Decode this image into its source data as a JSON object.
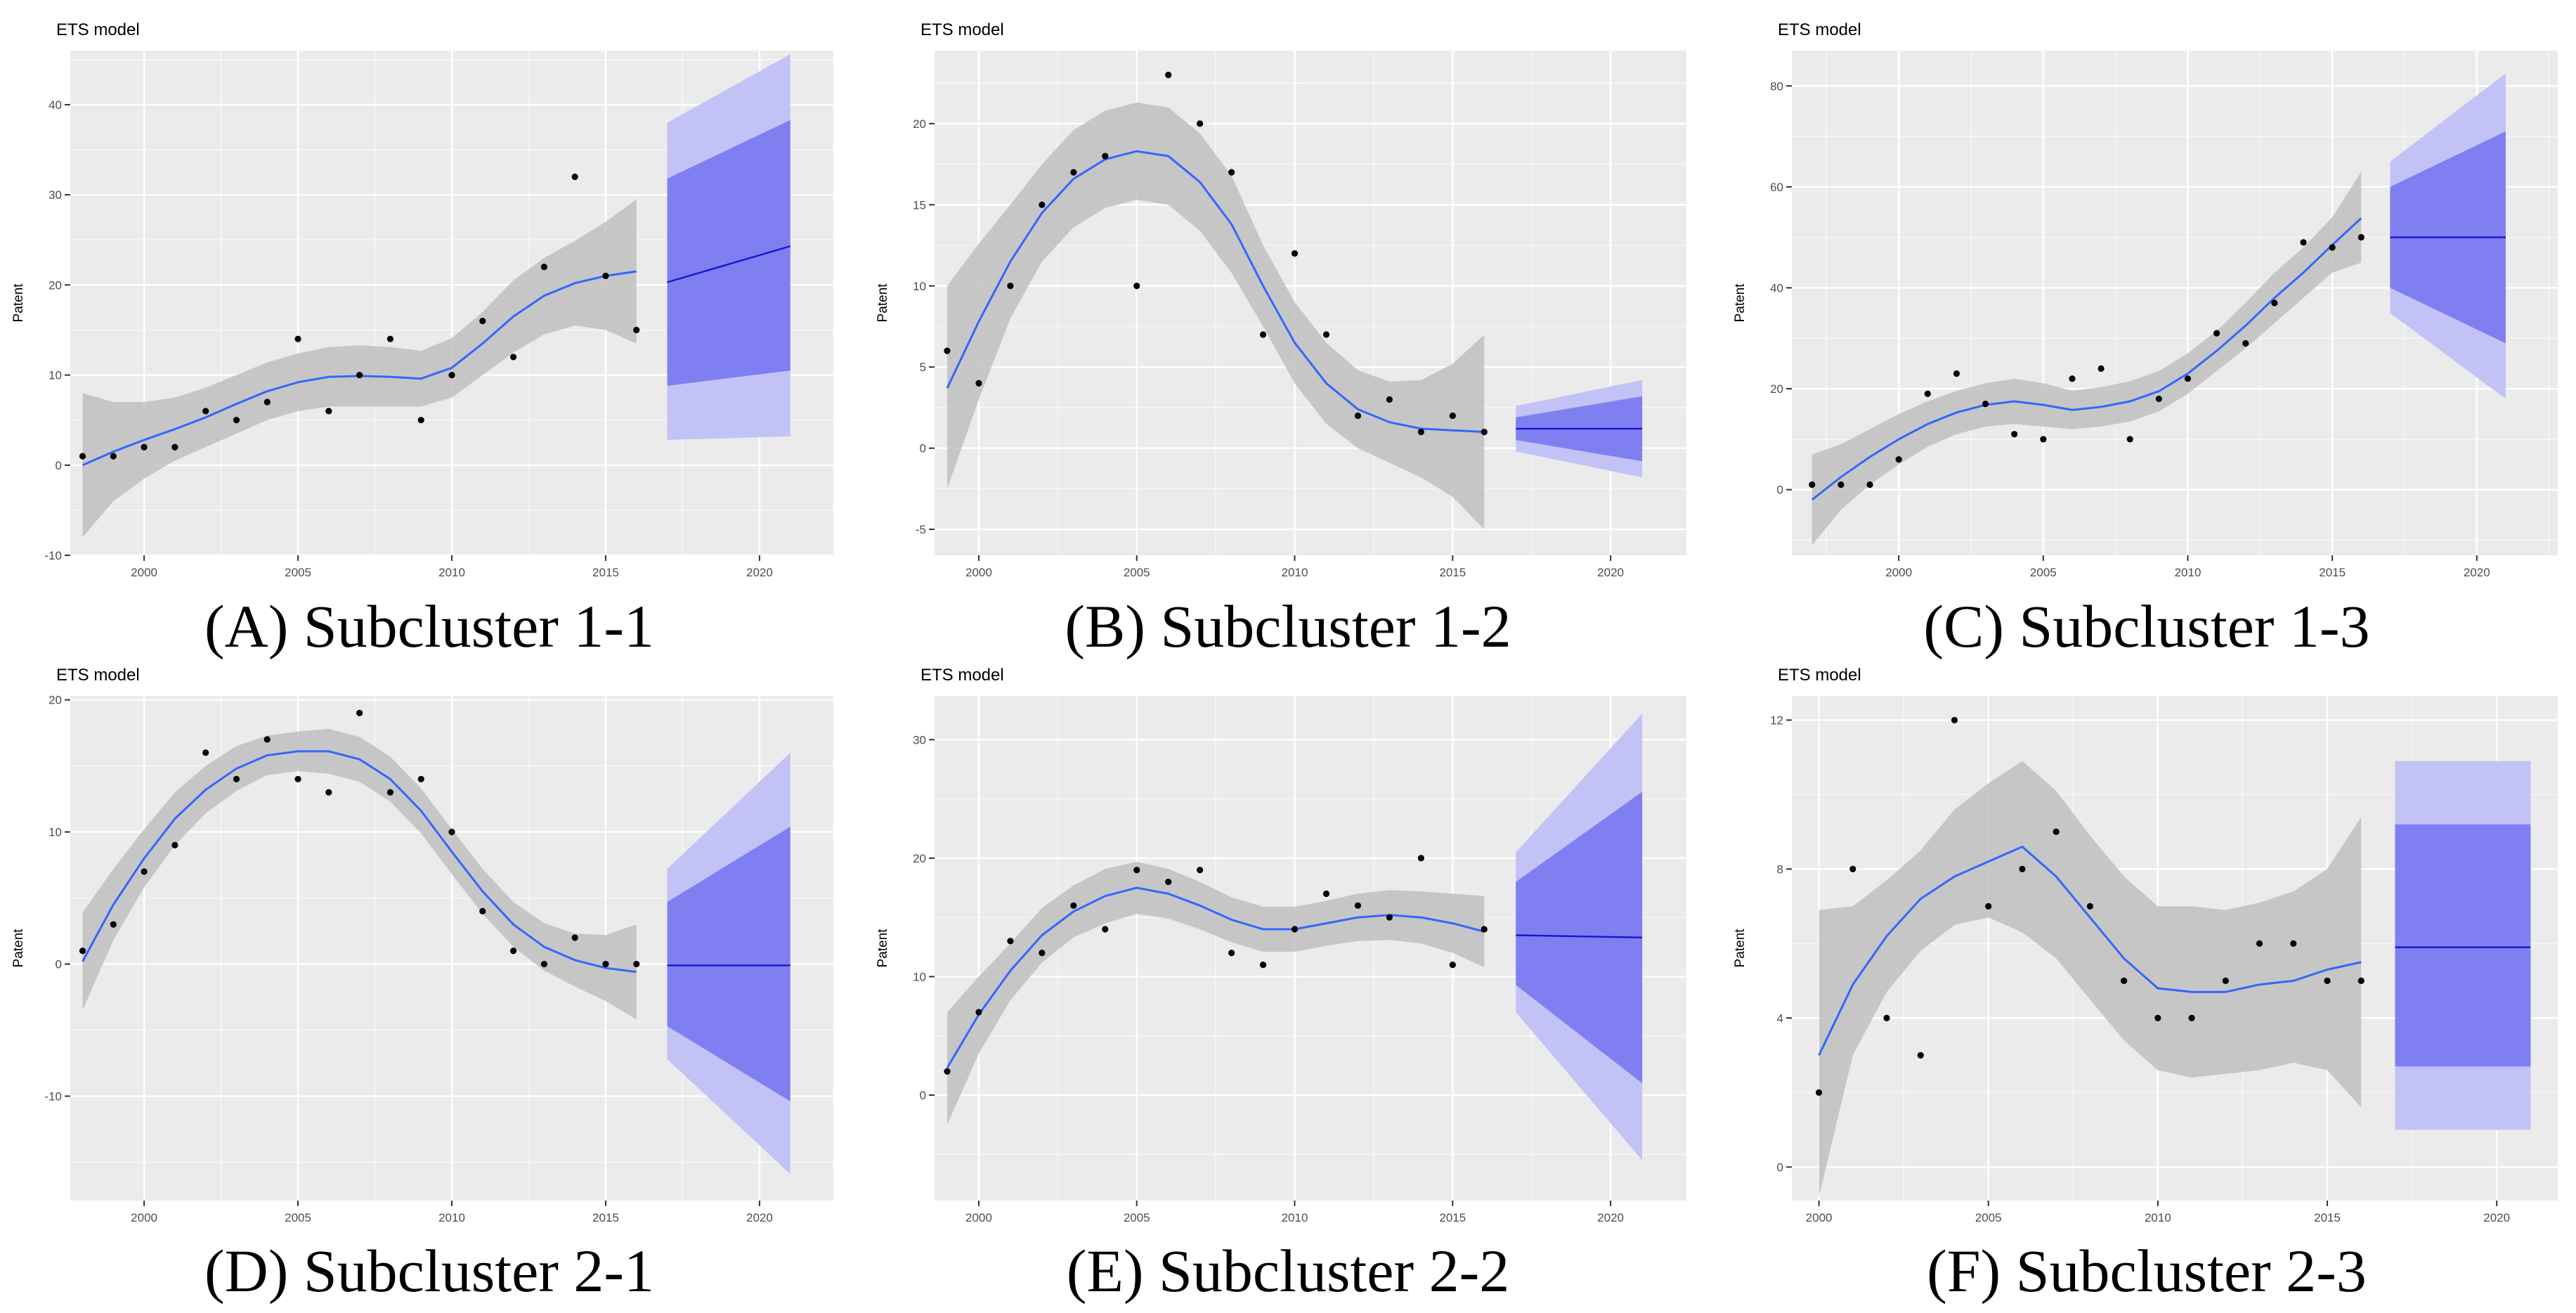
{
  "figure": {
    "panel_titles": [
      "ETS model",
      "ETS model",
      "ETS model",
      "ETS model",
      "ETS model",
      "ETS model"
    ],
    "captions": [
      "(A) Subcluster 1-1",
      "(B) Subcluster 1-2",
      "(C) Subcluster 1-3",
      "(D) Subcluster 2-1",
      "(E) Subcluster 2-2",
      "(F) Subcluster 2-3"
    ],
    "colors": {
      "panel_bg": "#ebebeb",
      "grid": "#ffffff",
      "ribbon": "#bfbfbf",
      "smooth": "#3366ff",
      "points": "#000000",
      "pi80": "#7f7ff2",
      "pi95": "#c2c2f7",
      "forecast_line": "#1515d9",
      "axis_text": "#4d4d4d"
    }
  },
  "chart_data": [
    {
      "type": "scatter",
      "title": "ETS model",
      "caption": "(A) Subcluster 1-1",
      "xlabel": "",
      "ylabel": "Patent",
      "xlim": [
        1997.6,
        2022.4
      ],
      "ylim": [
        -10,
        46
      ],
      "xticks": [
        2000,
        2005,
        2010,
        2015,
        2020
      ],
      "yticks": [
        -10,
        0,
        10,
        20,
        30,
        40
      ],
      "points": {
        "x": [
          1998,
          1999,
          2000,
          2001,
          2002,
          2003,
          2004,
          2005,
          2006,
          2007,
          2008,
          2009,
          2010,
          2011,
          2012,
          2013,
          2014,
          2015,
          2016
        ],
        "y": [
          1,
          1,
          2,
          2,
          6,
          5,
          7,
          14,
          6,
          10,
          14,
          5,
          10,
          16,
          12,
          22,
          32,
          21,
          15
        ]
      },
      "smooth": {
        "x": [
          1998,
          1999,
          2000,
          2001,
          2002,
          2003,
          2004,
          2005,
          2006,
          2007,
          2008,
          2009,
          2010,
          2011,
          2012,
          2013,
          2014,
          2015,
          2016
        ],
        "y": [
          0,
          1.5,
          2.8,
          4,
          5.3,
          6.8,
          8.2,
          9.2,
          9.8,
          9.9,
          9.8,
          9.6,
          10.8,
          13.5,
          16.5,
          18.8,
          20.2,
          21,
          21.5
        ],
        "lower": [
          -8,
          -4,
          -1.5,
          0.5,
          2,
          3.5,
          5,
          6,
          6.5,
          6.5,
          6.5,
          6.5,
          7.5,
          10,
          12.5,
          14.5,
          15.5,
          15,
          13.5
        ],
        "upper": [
          8,
          7,
          7,
          7.5,
          8.6,
          10,
          11.4,
          12.4,
          13.1,
          13.3,
          13.1,
          12.7,
          14.1,
          17,
          20.5,
          23,
          24.9,
          27,
          29.5
        ]
      },
      "forecast": {
        "x": [
          2017,
          2021
        ],
        "mean": [
          20.3,
          24.3
        ],
        "lo80": [
          8.8,
          10.5
        ],
        "hi80": [
          31.8,
          38.3
        ],
        "lo95": [
          2.8,
          3.2
        ],
        "hi95": [
          38,
          45.6
        ]
      }
    },
    {
      "type": "scatter",
      "title": "ETS model",
      "caption": "(B) Subcluster 1-2",
      "xlabel": "",
      "ylabel": "Patent",
      "xlim": [
        1998.6,
        2022.4
      ],
      "ylim": [
        -6.6,
        24.5
      ],
      "xticks": [
        2000,
        2005,
        2010,
        2015,
        2020
      ],
      "yticks": [
        -5,
        0,
        5,
        10,
        15,
        20
      ],
      "points": {
        "x": [
          1999,
          2000,
          2001,
          2002,
          2003,
          2004,
          2005,
          2006,
          2007,
          2008,
          2009,
          2010,
          2011,
          2012,
          2013,
          2014,
          2015,
          2016
        ],
        "y": [
          6,
          4,
          10,
          15,
          17,
          18,
          10,
          23,
          20,
          17,
          7,
          12,
          7,
          2,
          3,
          1,
          2,
          1
        ]
      },
      "smooth": {
        "x": [
          1999,
          2000,
          2001,
          2002,
          2003,
          2004,
          2005,
          2006,
          2007,
          2008,
          2009,
          2010,
          2011,
          2012,
          2013,
          2014,
          2015,
          2016
        ],
        "y": [
          3.7,
          7.8,
          11.5,
          14.5,
          16.6,
          17.8,
          18.3,
          18,
          16.4,
          13.8,
          10,
          6.5,
          4,
          2.4,
          1.6,
          1.2,
          1.1,
          1
        ],
        "lower": [
          -2.5,
          3,
          8,
          11.5,
          13.6,
          14.8,
          15.3,
          15,
          13.4,
          10.8,
          7.5,
          4,
          1.5,
          0,
          -0.9,
          -1.8,
          -3,
          -5
        ],
        "upper": [
          10,
          12.6,
          15,
          17.5,
          19.6,
          20.8,
          21.3,
          21,
          19.4,
          16.8,
          12.5,
          9,
          6.5,
          4.8,
          4.1,
          4.2,
          5.2,
          7
        ]
      },
      "forecast": {
        "x": [
          2017,
          2021
        ],
        "mean": [
          1.2,
          1.2
        ],
        "lo80": [
          0.5,
          -0.8
        ],
        "hi80": [
          1.9,
          3.2
        ],
        "lo95": [
          -0.2,
          -1.8
        ],
        "hi95": [
          2.6,
          4.2
        ]
      }
    },
    {
      "type": "scatter",
      "title": "ETS model",
      "caption": "(C) Subcluster 1-3",
      "xlabel": "",
      "ylabel": "Patent",
      "xlim": [
        1996.3,
        2022.8
      ],
      "ylim": [
        -13,
        87
      ],
      "xticks": [
        2000,
        2005,
        2010,
        2015,
        2020
      ],
      "yticks": [
        0,
        20,
        40,
        60,
        80
      ],
      "points": {
        "x": [
          1997,
          1998,
          1999,
          2000,
          2001,
          2002,
          2003,
          2004,
          2005,
          2006,
          2007,
          2008,
          2009,
          2010,
          2011,
          2012,
          2013,
          2014,
          2015,
          2016
        ],
        "y": [
          1,
          1,
          1,
          6,
          19,
          23,
          17,
          11,
          10,
          22,
          24,
          10,
          18,
          22,
          31,
          29,
          37,
          49,
          48,
          50
        ]
      },
      "smooth": {
        "x": [
          1997,
          1998,
          1999,
          2000,
          2001,
          2002,
          2003,
          2004,
          2005,
          2006,
          2007,
          2008,
          2009,
          2010,
          2011,
          2012,
          2013,
          2014,
          2015,
          2016
        ],
        "y": [
          -2,
          2.5,
          6.5,
          10,
          13,
          15.3,
          16.8,
          17.5,
          16.8,
          15.8,
          16.4,
          17.5,
          19.5,
          23,
          27.5,
          32.5,
          38,
          43,
          48.5,
          53.8
        ],
        "lower": [
          -11,
          -4,
          1,
          5,
          8.5,
          11,
          12.5,
          13,
          12.5,
          12,
          12.5,
          13.5,
          15.5,
          19,
          23.5,
          28,
          33,
          38,
          43,
          45
        ],
        "upper": [
          7,
          9,
          12,
          15,
          17.5,
          19.6,
          21.1,
          22,
          21.1,
          19.6,
          20.3,
          21.5,
          23.5,
          27,
          31.5,
          37,
          43,
          48,
          54,
          63
        ]
      },
      "forecast": {
        "x": [
          2017,
          2021
        ],
        "mean": [
          50,
          50
        ],
        "lo80": [
          40,
          29
        ],
        "hi80": [
          60,
          71
        ],
        "lo95": [
          35,
          18
        ],
        "hi95": [
          65,
          82.5
        ]
      }
    },
    {
      "type": "scatter",
      "title": "ETS model",
      "caption": "(D) Subcluster 2-1",
      "xlabel": "",
      "ylabel": "Patent",
      "xlim": [
        1997.6,
        2022.4
      ],
      "ylim": [
        -17.9,
        20.3
      ],
      "xticks": [
        2000,
        2005,
        2010,
        2015,
        2020
      ],
      "yticks": [
        -10,
        0,
        10,
        20
      ],
      "points": {
        "x": [
          1998,
          1999,
          2000,
          2001,
          2002,
          2003,
          2004,
          2005,
          2006,
          2007,
          2008,
          2009,
          2010,
          2011,
          2012,
          2013,
          2014,
          2015,
          2016
        ],
        "y": [
          1,
          3,
          7,
          9,
          16,
          14,
          17,
          14,
          13,
          19,
          13,
          14,
          10,
          4,
          1,
          0,
          2,
          0,
          0
        ]
      },
      "smooth": {
        "x": [
          1998,
          1999,
          2000,
          2001,
          2002,
          2003,
          2004,
          2005,
          2006,
          2007,
          2008,
          2009,
          2010,
          2011,
          2012,
          2013,
          2014,
          2015,
          2016
        ],
        "y": [
          0.2,
          4.5,
          8,
          11,
          13.2,
          14.8,
          15.8,
          16.1,
          16.1,
          15.5,
          14,
          11.6,
          8.5,
          5.5,
          3,
          1.3,
          0.3,
          -0.3,
          -0.6
        ],
        "lower": [
          -3.5,
          1.8,
          5.8,
          9,
          11.4,
          13.1,
          14.3,
          14.6,
          14.4,
          13.8,
          12.3,
          9.9,
          6.8,
          3.8,
          1.3,
          -0.5,
          -1.7,
          -2.8,
          -4.2
        ],
        "upper": [
          3.9,
          7.2,
          10.2,
          13,
          15,
          16.5,
          17.3,
          17.6,
          17.8,
          17.2,
          15.7,
          13.3,
          10.2,
          7.2,
          4.7,
          3.1,
          2.3,
          2.2,
          3
        ]
      },
      "forecast": {
        "x": [
          2017,
          2021
        ],
        "mean": [
          -0.1,
          -0.1
        ],
        "lo80": [
          -4.7,
          -10.4
        ],
        "hi80": [
          4.7,
          10.4
        ],
        "lo95": [
          -7.2,
          -15.9
        ],
        "hi95": [
          7.2,
          16
        ]
      }
    },
    {
      "type": "scatter",
      "title": "ETS model",
      "caption": "(E) Subcluster 2-2",
      "xlabel": "",
      "ylabel": "Patent",
      "xlim": [
        1998.6,
        2022.4
      ],
      "ylim": [
        -8.9,
        33.7
      ],
      "xticks": [
        2000,
        2005,
        2010,
        2015,
        2020
      ],
      "yticks": [
        0,
        10,
        20,
        30
      ],
      "points": {
        "x": [
          1999,
          2000,
          2001,
          2002,
          2003,
          2004,
          2005,
          2006,
          2007,
          2008,
          2009,
          2010,
          2011,
          2012,
          2013,
          2014,
          2015,
          2016
        ],
        "y": [
          2,
          7,
          13,
          12,
          16,
          14,
          19,
          18,
          19,
          12,
          11,
          14,
          17,
          16,
          15,
          20,
          11,
          14
        ]
      },
      "smooth": {
        "x": [
          1999,
          2000,
          2001,
          2002,
          2003,
          2004,
          2005,
          2006,
          2007,
          2008,
          2009,
          2010,
          2011,
          2012,
          2013,
          2014,
          2015,
          2016
        ],
        "y": [
          2.3,
          6.8,
          10.5,
          13.5,
          15.5,
          16.8,
          17.5,
          17,
          16,
          14.8,
          14,
          14,
          14.5,
          15,
          15.2,
          15,
          14.5,
          13.8
        ],
        "lower": [
          -2.5,
          3.5,
          8,
          11.2,
          13.3,
          14.5,
          15.3,
          14.9,
          14,
          12.9,
          12.1,
          12.1,
          12.6,
          13,
          13.1,
          12.8,
          12,
          10.8
        ],
        "upper": [
          7,
          10,
          12.8,
          15.8,
          17.7,
          19.1,
          19.7,
          19.1,
          18,
          16.7,
          15.9,
          15.9,
          16.4,
          17,
          17.3,
          17.2,
          17,
          16.8
        ]
      },
      "forecast": {
        "x": [
          2017,
          2021
        ],
        "mean": [
          13.5,
          13.3
        ],
        "lo80": [
          9.3,
          1
        ],
        "hi80": [
          18,
          25.6
        ],
        "lo95": [
          7,
          -5.5
        ],
        "hi95": [
          20.5,
          32.2
        ]
      }
    },
    {
      "type": "scatter",
      "title": "ETS model",
      "caption": "(F) Subcluster 2-3",
      "xlabel": "",
      "ylabel": "Patent",
      "xlim": [
        1999.2,
        2021.8
      ],
      "ylim": [
        -0.9,
        12.65
      ],
      "xticks": [
        2000,
        2005,
        2010,
        2015,
        2020
      ],
      "yticks": [
        0,
        4,
        8,
        12
      ],
      "points": {
        "x": [
          2000,
          2001,
          2002,
          2003,
          2004,
          2005,
          2006,
          2007,
          2008,
          2009,
          2010,
          2011,
          2012,
          2013,
          2014,
          2015,
          2016
        ],
        "y": [
          2,
          8,
          4,
          3,
          12,
          7,
          8,
          9,
          7,
          5,
          4,
          4,
          5,
          6,
          6,
          5,
          5
        ]
      },
      "smooth": {
        "x": [
          2000,
          2001,
          2002,
          2003,
          2004,
          2005,
          2006,
          2007,
          2008,
          2009,
          2010,
          2011,
          2012,
          2013,
          2014,
          2015,
          2016
        ],
        "y": [
          3,
          4.9,
          6.2,
          7.2,
          7.8,
          8.2,
          8.6,
          7.8,
          6.7,
          5.6,
          4.8,
          4.7,
          4.7,
          4.9,
          5,
          5.3,
          5.5
        ],
        "lower": [
          -0.8,
          3,
          4.7,
          5.8,
          6.5,
          6.7,
          6.3,
          5.6,
          4.5,
          3.4,
          2.6,
          2.4,
          2.5,
          2.6,
          2.8,
          2.6,
          1.6
        ],
        "upper": [
          6.9,
          7,
          7.7,
          8.5,
          9.6,
          10.3,
          10.9,
          10.1,
          8.9,
          7.8,
          7,
          7,
          6.9,
          7.1,
          7.4,
          8,
          9.4
        ]
      },
      "forecast": {
        "x": [
          2017,
          2021
        ],
        "mean": [
          5.9,
          5.9
        ],
        "lo80": [
          2.7,
          2.7
        ],
        "hi80": [
          9.2,
          9.2
        ],
        "lo95": [
          1,
          1
        ],
        "hi95": [
          10.9,
          10.9
        ]
      }
    }
  ]
}
